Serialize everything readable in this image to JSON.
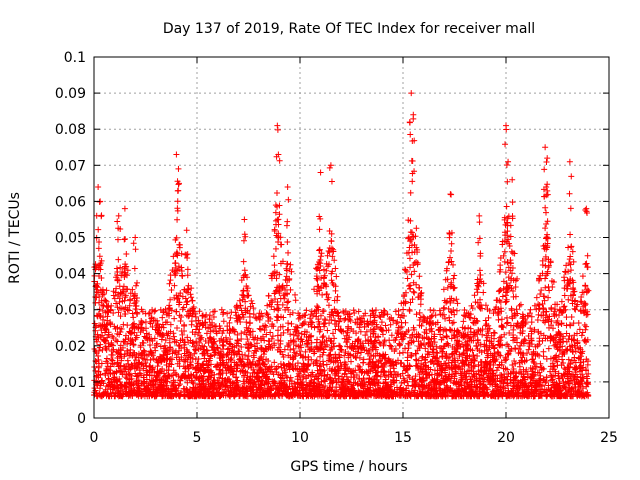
{
  "chart_data": {
    "type": "scatter",
    "title": "Day 137 of 2019, Rate Of TEC Index for receiver mall",
    "xlabel": "GPS time / hours",
    "ylabel": "ROTI / TECUs",
    "xlim": [
      0,
      25
    ],
    "ylim": [
      0,
      0.1
    ],
    "grid": true,
    "marker": "+",
    "series_color": "#ff0000",
    "xticks": [
      {
        "value": 0,
        "label": "0"
      },
      {
        "value": 5,
        "label": "5"
      },
      {
        "value": 10,
        "label": "10"
      },
      {
        "value": 15,
        "label": "15"
      },
      {
        "value": 20,
        "label": "20"
      },
      {
        "value": 25,
        "label": "25"
      }
    ],
    "yticks": [
      {
        "value": 0,
        "label": "0"
      },
      {
        "value": 0.01,
        "label": "0.01"
      },
      {
        "value": 0.02,
        "label": "0.02"
      },
      {
        "value": 0.03,
        "label": "0.03"
      },
      {
        "value": 0.04,
        "label": "0.04"
      },
      {
        "value": 0.05,
        "label": "0.05"
      },
      {
        "value": 0.06,
        "label": "0.06"
      },
      {
        "value": 0.07,
        "label": "0.07"
      },
      {
        "value": 0.08,
        "label": "0.08"
      },
      {
        "value": 0.09,
        "label": "0.09"
      },
      {
        "value": 0.1,
        "label": "0.1"
      }
    ],
    "data_x_range_hours": [
      0,
      24
    ],
    "dense_band_y": [
      0.003,
      0.03
    ],
    "peaks": [
      {
        "x": 0.2,
        "y": 0.064
      },
      {
        "x": 0.3,
        "y": 0.06
      },
      {
        "x": 1.2,
        "y": 0.056
      },
      {
        "x": 1.5,
        "y": 0.058
      },
      {
        "x": 2.0,
        "y": 0.05
      },
      {
        "x": 4.0,
        "y": 0.073
      },
      {
        "x": 4.1,
        "y": 0.069
      },
      {
        "x": 4.5,
        "y": 0.052
      },
      {
        "x": 7.3,
        "y": 0.055
      },
      {
        "x": 8.9,
        "y": 0.081
      },
      {
        "x": 8.95,
        "y": 0.073
      },
      {
        "x": 9.4,
        "y": 0.064
      },
      {
        "x": 11.0,
        "y": 0.068
      },
      {
        "x": 11.5,
        "y": 0.07
      },
      {
        "x": 15.4,
        "y": 0.09
      },
      {
        "x": 15.5,
        "y": 0.084
      },
      {
        "x": 17.3,
        "y": 0.062
      },
      {
        "x": 18.7,
        "y": 0.056
      },
      {
        "x": 20.0,
        "y": 0.081
      },
      {
        "x": 20.1,
        "y": 0.071
      },
      {
        "x": 20.3,
        "y": 0.066
      },
      {
        "x": 21.9,
        "y": 0.075
      },
      {
        "x": 22.0,
        "y": 0.072
      },
      {
        "x": 21.95,
        "y": 0.064
      },
      {
        "x": 23.1,
        "y": 0.071
      },
      {
        "x": 23.9,
        "y": 0.058
      }
    ]
  }
}
